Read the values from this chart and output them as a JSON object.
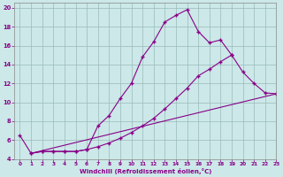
{
  "xlabel": "Windchill (Refroidissement éolien,°C)",
  "xlim": [
    -0.5,
    23
  ],
  "ylim": [
    4,
    20.5
  ],
  "xticks": [
    0,
    1,
    2,
    3,
    4,
    5,
    6,
    7,
    8,
    9,
    10,
    11,
    12,
    13,
    14,
    15,
    16,
    17,
    18,
    19,
    20,
    21,
    22,
    23
  ],
  "yticks": [
    4,
    6,
    8,
    10,
    12,
    14,
    16,
    18,
    20
  ],
  "bg_color": "#cce8e8",
  "line_color": "#880088",
  "grid_color": "#99bbbb",
  "line1_x": [
    0,
    1,
    2,
    3,
    4,
    5,
    6,
    7,
    8,
    9,
    10,
    11,
    12,
    13,
    14,
    15,
    16,
    17,
    18,
    19
  ],
  "line1_y": [
    6.5,
    4.6,
    4.8,
    4.8,
    4.8,
    4.8,
    5.0,
    7.5,
    8.6,
    10.4,
    12.0,
    14.8,
    16.4,
    18.5,
    19.2,
    19.8,
    17.5,
    16.3,
    16.6,
    15.0
  ],
  "line2_x": [
    1,
    2,
    3,
    4,
    5,
    6,
    7,
    8,
    9,
    10,
    11,
    12,
    13,
    14,
    15,
    16,
    17,
    18,
    19,
    20,
    21,
    22,
    23
  ],
  "line2_y": [
    4.6,
    4.8,
    4.8,
    4.8,
    4.8,
    5.0,
    5.3,
    5.7,
    6.2,
    6.8,
    7.5,
    8.3,
    9.3,
    10.4,
    11.5,
    12.8,
    13.5,
    14.3,
    15.0,
    13.2,
    12.0,
    11.0,
    10.9
  ],
  "line3_x": [
    1,
    23
  ],
  "line3_y": [
    4.6,
    10.9
  ]
}
